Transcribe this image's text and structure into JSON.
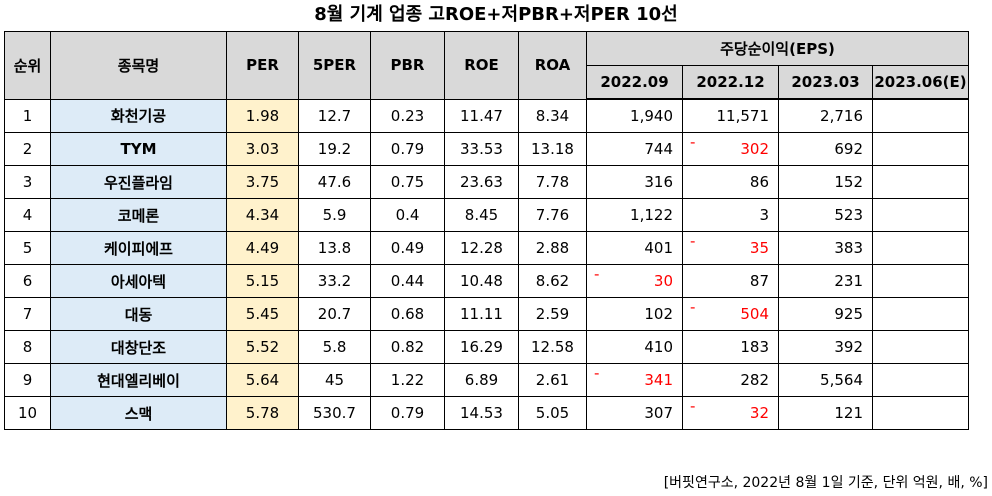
{
  "title": "8월  기계 업종 고ROE+저PBR+저PER 10선",
  "headers": {
    "rank": "순위",
    "name": "종목명",
    "per": "PER",
    "fiveper": "5PER",
    "pbr": "PBR",
    "roe": "ROE",
    "roa": "ROA",
    "eps_group": "주당순이익(EPS)",
    "eps_periods": [
      "2022.09",
      "2022.12",
      "2023.03",
      "2023.06(E)"
    ]
  },
  "rows": [
    {
      "rank": "1",
      "name": "화천기공",
      "per": "1.98",
      "fiveper": "12.7",
      "pbr": "0.23",
      "roe": "11.47",
      "roa": "8.34",
      "eps": [
        "1,940",
        "11,571",
        "2,716",
        ""
      ],
      "neg": [
        false,
        false,
        false,
        false
      ]
    },
    {
      "rank": "2",
      "name": "TYM",
      "per": "3.03",
      "fiveper": "19.2",
      "pbr": "0.79",
      "roe": "33.53",
      "roa": "13.18",
      "eps": [
        "744",
        "302",
        "692",
        ""
      ],
      "neg": [
        false,
        true,
        false,
        false
      ]
    },
    {
      "rank": "3",
      "name": "우진플라임",
      "per": "3.75",
      "fiveper": "47.6",
      "pbr": "0.75",
      "roe": "23.63",
      "roa": "7.78",
      "eps": [
        "316",
        "86",
        "152",
        ""
      ],
      "neg": [
        false,
        false,
        false,
        false
      ]
    },
    {
      "rank": "4",
      "name": "코메론",
      "per": "4.34",
      "fiveper": "5.9",
      "pbr": "0.4",
      "roe": "8.45",
      "roa": "7.76",
      "eps": [
        "1,122",
        "3",
        "523",
        ""
      ],
      "neg": [
        false,
        false,
        false,
        false
      ]
    },
    {
      "rank": "5",
      "name": "케이피에프",
      "per": "4.49",
      "fiveper": "13.8",
      "pbr": "0.49",
      "roe": "12.28",
      "roa": "2.88",
      "eps": [
        "401",
        "35",
        "383",
        ""
      ],
      "neg": [
        false,
        true,
        false,
        false
      ]
    },
    {
      "rank": "6",
      "name": "아세아텍",
      "per": "5.15",
      "fiveper": "33.2",
      "pbr": "0.44",
      "roe": "10.48",
      "roa": "8.62",
      "eps": [
        "30",
        "87",
        "231",
        ""
      ],
      "neg": [
        true,
        false,
        false,
        false
      ]
    },
    {
      "rank": "7",
      "name": "대동",
      "per": "5.45",
      "fiveper": "20.7",
      "pbr": "0.68",
      "roe": "11.11",
      "roa": "2.59",
      "eps": [
        "102",
        "504",
        "925",
        ""
      ],
      "neg": [
        false,
        true,
        false,
        false
      ]
    },
    {
      "rank": "8",
      "name": "대창단조",
      "per": "5.52",
      "fiveper": "5.8",
      "pbr": "0.82",
      "roe": "16.29",
      "roa": "12.58",
      "eps": [
        "410",
        "183",
        "392",
        ""
      ],
      "neg": [
        false,
        false,
        false,
        false
      ]
    },
    {
      "rank": "9",
      "name": "현대엘리베이",
      "per": "5.64",
      "fiveper": "45",
      "pbr": "1.22",
      "roe": "6.89",
      "roa": "2.61",
      "eps": [
        "341",
        "282",
        "5,564",
        ""
      ],
      "neg": [
        true,
        false,
        false,
        false
      ]
    },
    {
      "rank": "10",
      "name": "스맥",
      "per": "5.78",
      "fiveper": "530.7",
      "pbr": "0.79",
      "roe": "14.53",
      "roa": "5.05",
      "eps": [
        "307",
        "32",
        "121",
        ""
      ],
      "neg": [
        false,
        true,
        false,
        false
      ]
    }
  ],
  "negative_marker": "-",
  "colors": {
    "name_bg": "#ddebf7",
    "per_bg": "#fff2cc",
    "header_bg": "#d9d9d9",
    "negative": "#ff0000"
  },
  "source": "[버핏연구소, 2022년 8월 1일 기준, 단위 억원, 배, %]"
}
